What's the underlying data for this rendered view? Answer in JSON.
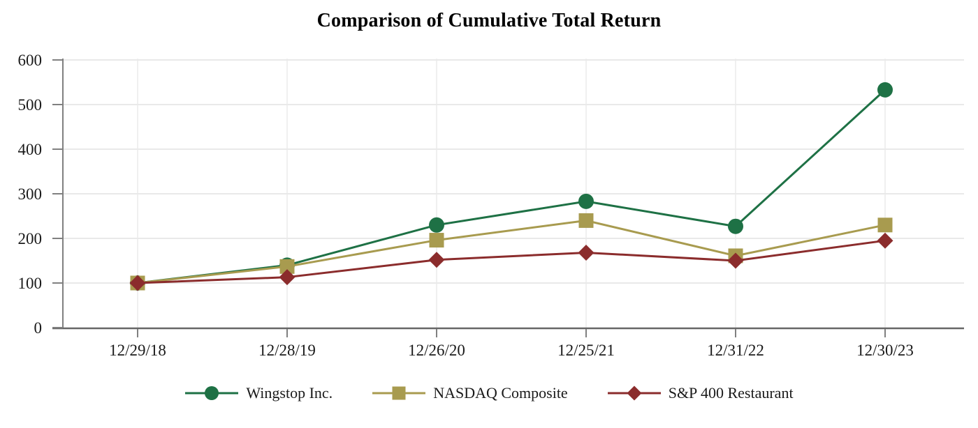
{
  "chart_data": {
    "type": "line",
    "title": "Comparison of Cumulative Total Return",
    "x_labels": [
      "12/29/18",
      "12/28/19",
      "12/26/20",
      "12/25/21",
      "12/31/22",
      "12/30/23"
    ],
    "yticks": [
      0,
      100,
      200,
      300,
      400,
      500,
      600
    ],
    "ylim": [
      0,
      600
    ],
    "grid": true,
    "legend_position": "bottom",
    "series": [
      {
        "name": "Wingstop Inc.",
        "marker": "circle",
        "color": "#1E7145",
        "values": [
          100,
          140,
          230,
          283,
          227,
          533
        ]
      },
      {
        "name": "NASDAQ Composite",
        "marker": "square",
        "color": "#A89B4F",
        "values": [
          100,
          137,
          196,
          240,
          161,
          230
        ]
      },
      {
        "name": "S&P 400 Restaurant",
        "marker": "diamond",
        "color": "#8B2C2C",
        "values": [
          100,
          113,
          152,
          168,
          150,
          195
        ]
      }
    ],
    "colors": {
      "y_axis": "#808080",
      "x_axis": "#666666",
      "gridline_h": "#E2E2E2",
      "gridline_v": "#E9E9E9",
      "tick": "#808080",
      "text": "#1a1a1a"
    }
  }
}
